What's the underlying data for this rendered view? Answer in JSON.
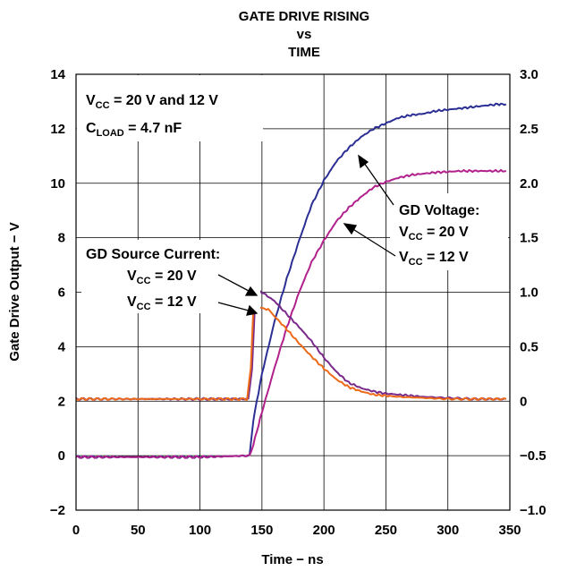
{
  "chart_data": {
    "type": "line",
    "title_lines": [
      "GATE DRIVE RISING",
      "vs",
      "TIME"
    ],
    "xlabel": "Time − ns",
    "ylabel": "Gate Drive Output − V",
    "y2label": "",
    "xlim": [
      0,
      350
    ],
    "ylim": [
      -2,
      14
    ],
    "y2lim": [
      -1.0,
      3.0
    ],
    "x_ticks": [
      "0",
      "50",
      "100",
      "150",
      "200",
      "250",
      "300",
      "350"
    ],
    "y_ticks": [
      "−2",
      "0",
      "2",
      "4",
      "6",
      "8",
      "10",
      "12",
      "14"
    ],
    "y2_ticks": [
      "−1.0",
      "−0.5",
      "0",
      "0.5",
      "1.0",
      "1.5",
      "2.0",
      "2.5",
      "3.0"
    ],
    "grid": true,
    "conditions": {
      "line1": {
        "pre": "V",
        "sub": "CC",
        "post": " = 20 V and 12 V"
      },
      "line2": {
        "pre": "C",
        "sub": "LOAD",
        "post": " = 4.7 nF"
      }
    },
    "annotations": {
      "gd_voltage": {
        "title": "GD Voltage:",
        "line1": {
          "pre": "V",
          "sub": "CC",
          "post": " = 20 V"
        },
        "line2": {
          "pre": "V",
          "sub": "CC",
          "post": " = 12 V"
        }
      },
      "gd_current": {
        "title": "GD Source Current:",
        "line1": {
          "pre": "V",
          "sub": "CC",
          "post": " = 20 V"
        },
        "line2": {
          "pre": "V",
          "sub": "CC",
          "post": " = 12 V"
        }
      }
    },
    "series": [
      {
        "axis": "left",
        "color": "#2b2f93",
        "x": [
          0,
          100,
          140,
          143,
          150,
          160,
          170,
          180,
          190,
          200,
          210,
          220,
          230,
          240,
          250,
          260,
          270,
          280,
          290,
          300,
          310,
          320,
          330,
          340,
          347
        ],
        "y": [
          -0.05,
          -0.05,
          0,
          1.3,
          3.0,
          4.9,
          6.5,
          7.9,
          9.2,
          10.1,
          10.8,
          11.3,
          11.7,
          12.0,
          12.2,
          12.4,
          12.5,
          12.55,
          12.65,
          12.7,
          12.75,
          12.8,
          12.85,
          12.9,
          12.9
        ]
      },
      {
        "axis": "left",
        "color": "#b0218c",
        "x": [
          0,
          100,
          140,
          143,
          150,
          160,
          170,
          180,
          190,
          200,
          210,
          220,
          230,
          240,
          250,
          260,
          270,
          280,
          290,
          300,
          310,
          320,
          330,
          340,
          347
        ],
        "y": [
          -0.05,
          -0.05,
          0,
          0.4,
          1.6,
          3.2,
          4.7,
          6.0,
          7.1,
          7.9,
          8.6,
          9.1,
          9.5,
          9.85,
          10.05,
          10.2,
          10.3,
          10.35,
          10.4,
          10.42,
          10.45,
          10.45,
          10.45,
          10.45,
          10.45
        ]
      },
      {
        "axis": "right",
        "color": "#7a2a8a",
        "x": [
          0,
          139,
          142,
          145,
          150,
          160,
          170,
          180,
          190,
          200,
          210,
          220,
          230,
          240,
          250,
          260,
          270,
          280,
          300,
          320,
          347
        ],
        "y": [
          0.02,
          0.02,
          0.3,
          1.05,
          1.0,
          0.92,
          0.8,
          0.68,
          0.55,
          0.4,
          0.27,
          0.17,
          0.12,
          0.09,
          0.07,
          0.06,
          0.05,
          0.04,
          0.03,
          0.02,
          0.02
        ]
      },
      {
        "axis": "right",
        "color": "#ec6a18",
        "x": [
          0,
          138,
          141,
          143,
          148,
          155,
          160,
          170,
          180,
          190,
          200,
          210,
          220,
          230,
          240,
          250,
          260,
          280,
          300,
          320,
          347
        ],
        "y": [
          0.02,
          0.02,
          0.3,
          0.83,
          0.86,
          0.84,
          0.78,
          0.66,
          0.53,
          0.41,
          0.3,
          0.2,
          0.13,
          0.09,
          0.06,
          0.05,
          0.04,
          0.03,
          0.02,
          0.02,
          0.02
        ]
      }
    ]
  }
}
